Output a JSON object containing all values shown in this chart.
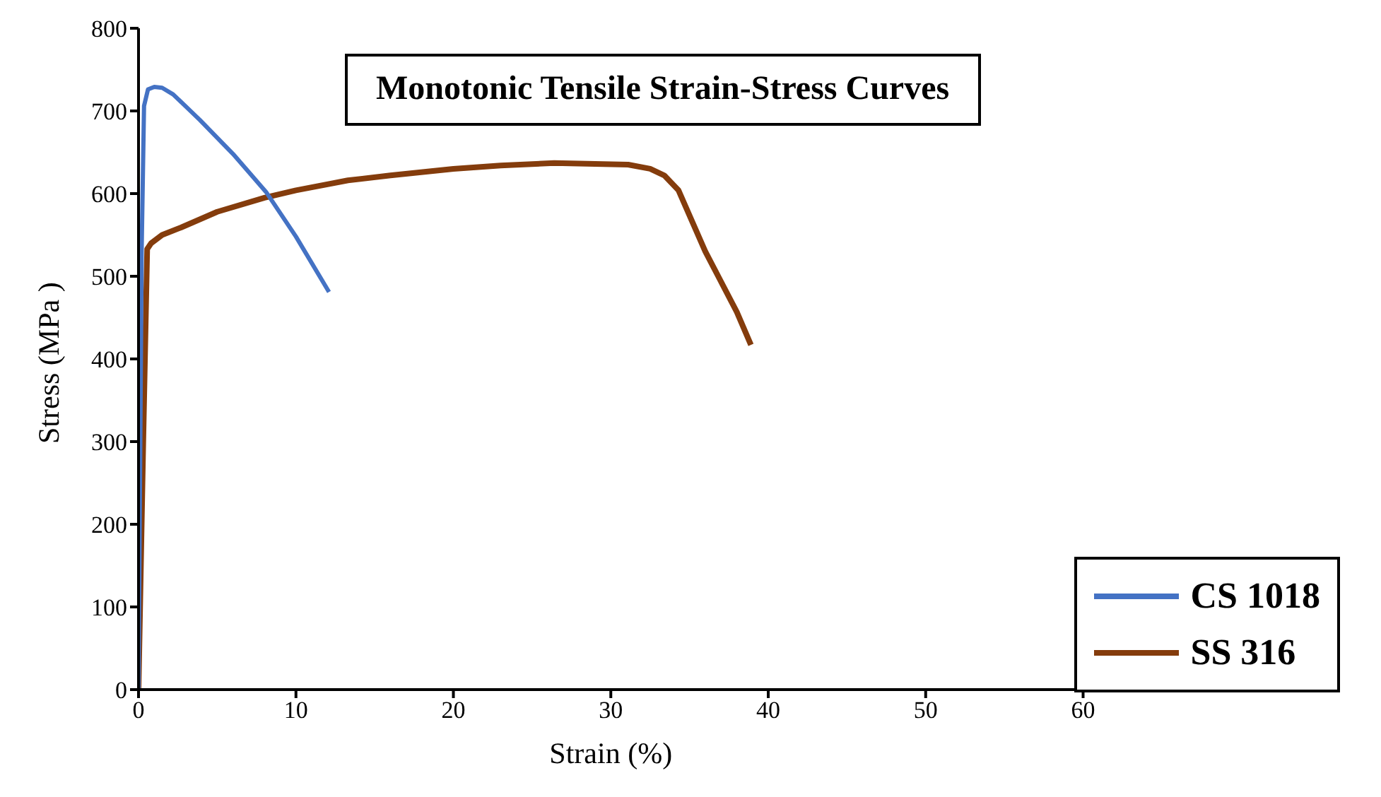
{
  "chart_data": {
    "type": "line",
    "title": "Monotonic Tensile Strain-Stress Curves",
    "xlabel": "Strain (%)",
    "ylabel": "Stress (MPa )",
    "xlim": [
      0,
      60
    ],
    "xticks": [
      0,
      10,
      20,
      30,
      40,
      50,
      60
    ],
    "ylim": [
      0,
      800
    ],
    "yticks": [
      0,
      100,
      200,
      300,
      400,
      500,
      600,
      700,
      800
    ],
    "grid": false,
    "legend": "bottom right",
    "marker": "none",
    "line_style": "solid",
    "series": [
      {
        "name": "SS 316",
        "color": "#843c0c",
        "x": [
          0,
          0.3,
          0.55,
          0.8,
          1.5,
          2.7,
          5,
          8,
          10,
          13.3,
          16,
          20,
          23,
          26.4,
          29,
          31.1,
          32.5,
          33.4,
          34.3,
          36,
          38,
          38.9
        ],
        "values": [
          0,
          300,
          533,
          540,
          550,
          559,
          578,
          595,
          604,
          616,
          622,
          630,
          634,
          637,
          636,
          635,
          630,
          622,
          604,
          530,
          457,
          417
        ]
      },
      {
        "name": "CS 1018",
        "color": "#4472c4",
        "x": [
          0,
          0.2,
          0.35,
          0.6,
          1,
          1.5,
          2.2,
          3.9,
          6,
          8.1,
          10,
          12.1
        ],
        "values": [
          0,
          533,
          706,
          726,
          729,
          728,
          720,
          689,
          648,
          602,
          548,
          481
        ]
      }
    ]
  }
}
